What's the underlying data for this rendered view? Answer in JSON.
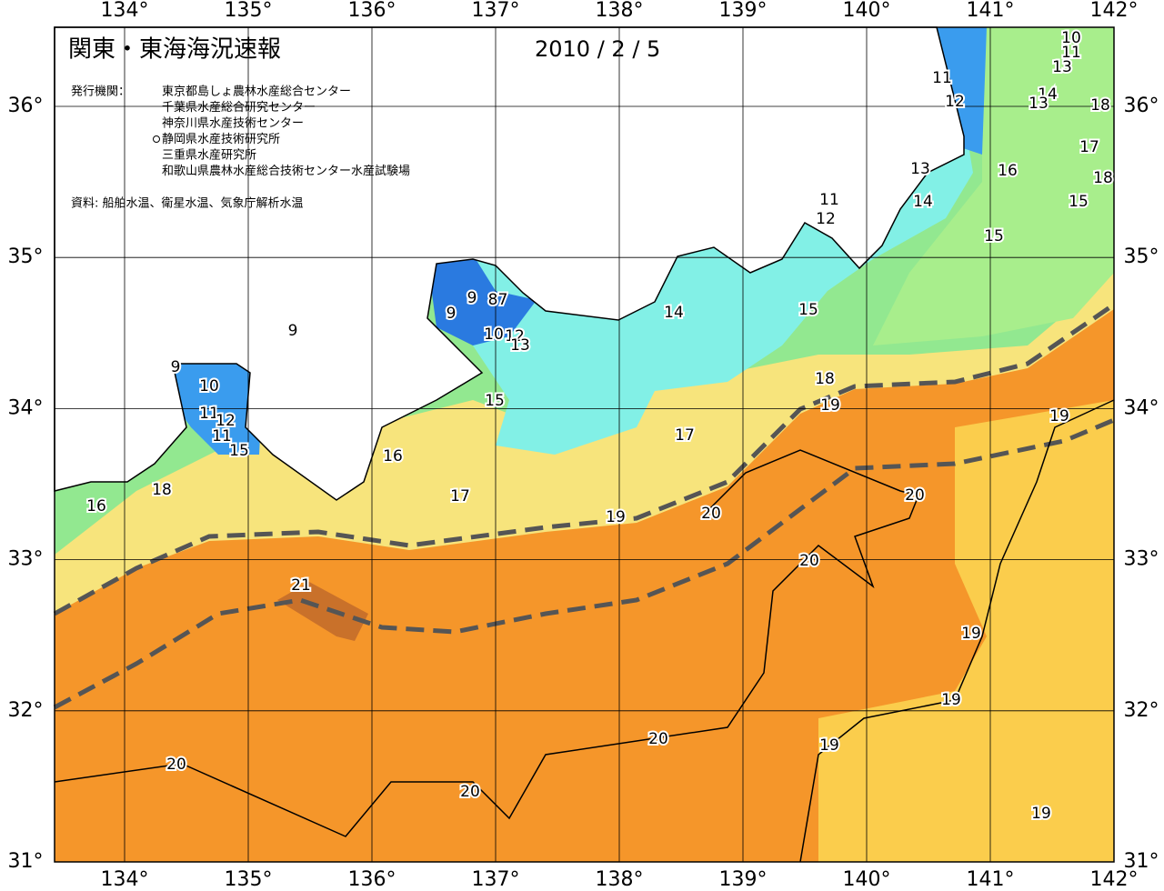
{
  "header": {
    "title": "関東・東海海況速報",
    "date": "2010 / 2 / 5",
    "issuer_label": "発行機関：",
    "issuers": [
      "東京都島しょ農林水産総合センター",
      "千葉県水産総合研究センター",
      "神奈川県水産技術センター",
      "静岡県水産技術研究所",
      "三重県水産研究所",
      "和歌山県農林水産総合技術センター水産試験場"
    ],
    "source": "資料: 船舶水温、衛星水温、気象庁解析水温"
  },
  "map": {
    "lon_ticks": [
      {
        "value": 134,
        "label": "134°"
      },
      {
        "value": 135,
        "label": "135°"
      },
      {
        "value": 136,
        "label": "136°"
      },
      {
        "value": 137,
        "label": "137°"
      },
      {
        "value": 138,
        "label": "138°"
      },
      {
        "value": 139,
        "label": "139°"
      },
      {
        "value": 140,
        "label": "140°"
      },
      {
        "value": 141,
        "label": "141°"
      },
      {
        "value": 142,
        "label": "142°"
      }
    ],
    "lat_ticks": [
      {
        "value": 31,
        "label": "31°"
      },
      {
        "value": 32,
        "label": "32°"
      },
      {
        "value": 33,
        "label": "33°"
      },
      {
        "value": 34,
        "label": "34°"
      },
      {
        "value": 35,
        "label": "35°"
      },
      {
        "value": 36,
        "label": "36°"
      }
    ],
    "contour_labels": [
      "10",
      "11",
      "13",
      "11",
      "12",
      "14",
      "13",
      "18",
      "17",
      "16",
      "18",
      "13",
      "15",
      "14",
      "11",
      "12",
      "15",
      "9",
      "8",
      "7",
      "9",
      "14",
      "15",
      "9",
      "10",
      "12",
      "13",
      "9",
      "18",
      "19",
      "10",
      "15",
      "11",
      "12",
      "19",
      "11",
      "15",
      "17",
      "16",
      "20",
      "18",
      "17",
      "16",
      "19",
      "20",
      "20",
      "21",
      "19",
      "19",
      "20",
      "19",
      "20",
      "20",
      "19"
    ]
  }
}
